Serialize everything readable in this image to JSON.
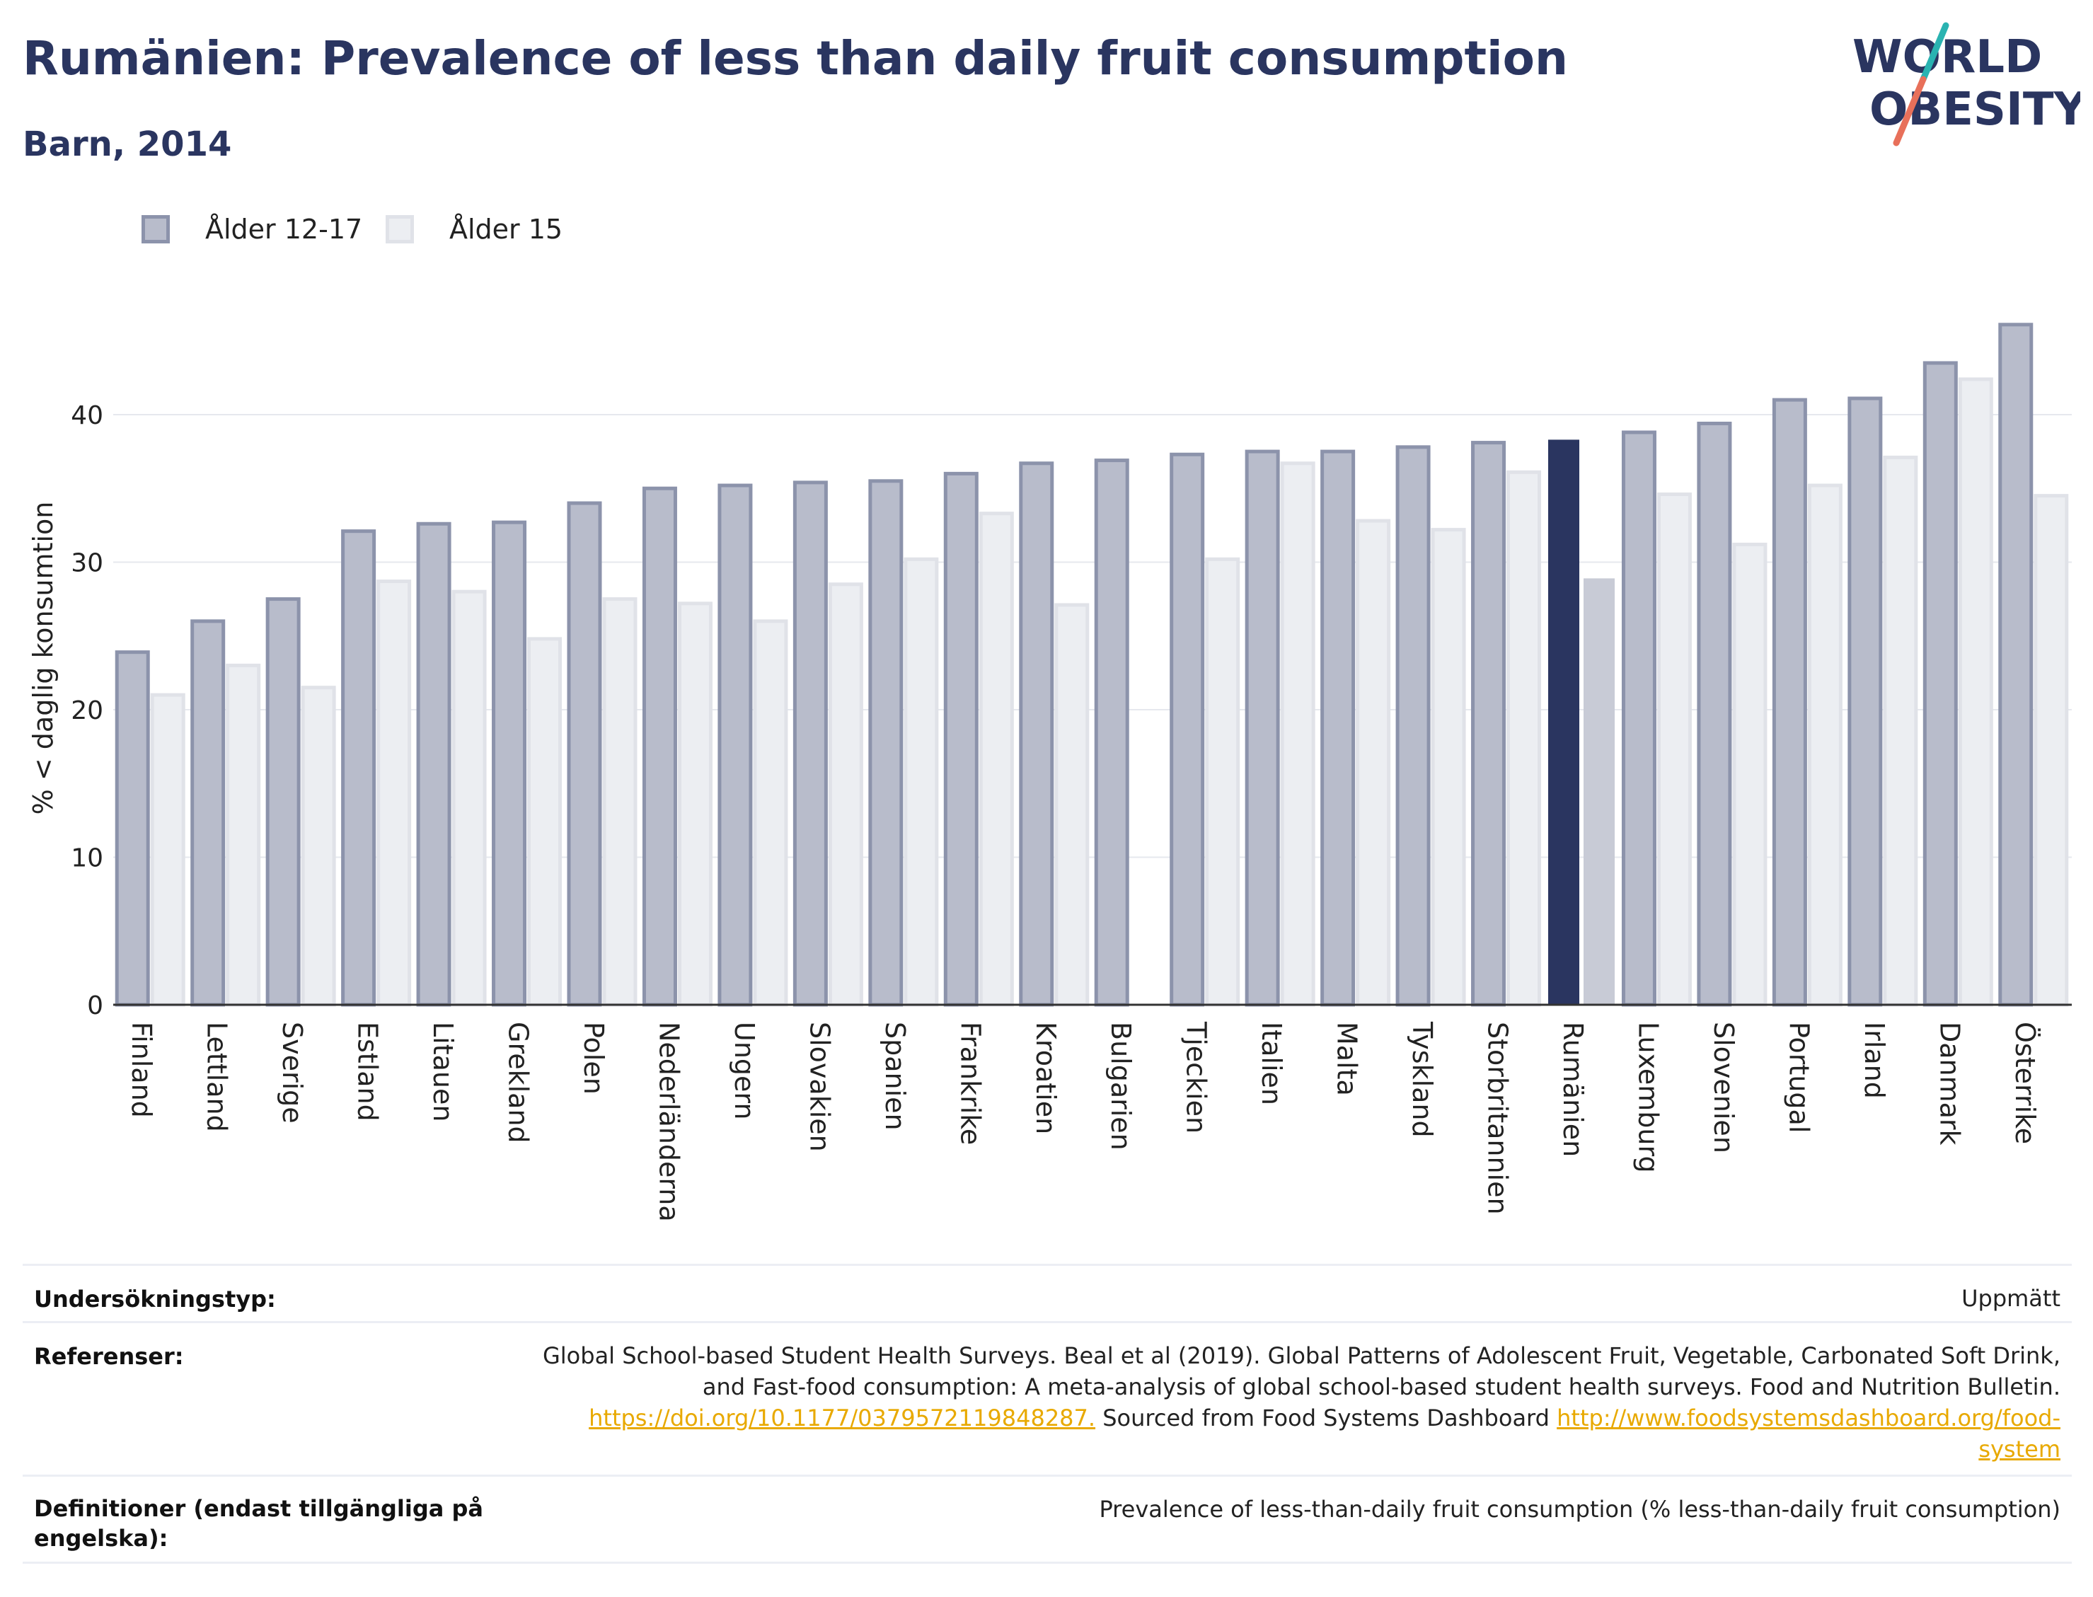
{
  "header": {
    "title": "Rumänien: Prevalence of less than daily fruit consumption",
    "subtitle": "Barn, 2014"
  },
  "logo": {
    "line1": "WORLD",
    "line2": "OBESITY",
    "accent_colors": [
      "#2ab3b1",
      "#e8705a"
    ]
  },
  "legend": [
    {
      "label": "Ålder 12-17",
      "color": "#b8bccb",
      "border": "#8c93ab"
    },
    {
      "label": "Ålder 15",
      "color": "#eceef2",
      "border": "#e0e2e8"
    }
  ],
  "colors": {
    "highlight_primary": "#2a3560",
    "highlight_secondary": "#c8cbd6",
    "title": "#2a3560",
    "link": "#e8a900"
  },
  "chart_data": {
    "type": "bar",
    "ylabel": "% < daglig konsumtion",
    "ylim": [
      0,
      47
    ],
    "yticks": [
      0,
      10,
      20,
      30,
      40
    ],
    "grid": true,
    "legend_position": "top-left",
    "highlight_category": "Rumänien",
    "categories": [
      "Finland",
      "Lettland",
      "Sverige",
      "Estland",
      "Litauen",
      "Grekland",
      "Polen",
      "Nederländerna",
      "Ungern",
      "Slovakien",
      "Spanien",
      "Frankrike",
      "Kroatien",
      "Bulgarien",
      "Tjeckien",
      "Italien",
      "Malta",
      "Tyskland",
      "Storbritannien",
      "Rumänien",
      "Luxemburg",
      "Slovenien",
      "Portugal",
      "Irland",
      "Danmark",
      "Österrike"
    ],
    "series": [
      {
        "name": "Ålder 12-17",
        "values": [
          23.9,
          26.0,
          27.5,
          32.1,
          32.6,
          32.7,
          34.0,
          35.0,
          35.2,
          35.4,
          35.5,
          36.0,
          36.7,
          36.9,
          37.3,
          37.5,
          37.5,
          37.8,
          38.1,
          38.3,
          38.8,
          39.4,
          41.0,
          41.1,
          43.5,
          46.1
        ]
      },
      {
        "name": "Ålder 15",
        "values": [
          21.0,
          23.0,
          21.5,
          28.7,
          28.0,
          24.8,
          27.5,
          27.2,
          26.0,
          28.5,
          30.2,
          33.3,
          27.1,
          null,
          30.2,
          36.7,
          32.8,
          32.2,
          36.1,
          28.9,
          34.6,
          31.2,
          35.2,
          37.1,
          42.4,
          34.5
        ]
      }
    ]
  },
  "footer": {
    "survey_type_label": "Undersökningstyp:",
    "survey_type_value": "Uppmätt",
    "references_label": "Referenser:",
    "references_line1": "Global School-based Student Health Surveys. Beal et al (2019). Global Patterns of Adolescent Fruit, Vegetable, Carbonated Soft Drink,",
    "references_line2": "and Fast-food consumption: A meta-analysis of global school-based student health surveys. Food and Nutrition Bulletin.",
    "references_link1": "https://doi.org/10.1177/0379572119848287.",
    "references_mid": " Sourced from Food Systems Dashboard ",
    "references_link2a": "http://www.foodsystemsdashboard.org/food-",
    "references_link2b": "system",
    "definitions_label_1": "Definitioner (endast tillgängliga på",
    "definitions_label_2": "engelska):",
    "definitions_value": "Prevalence of less-than-daily fruit consumption (% less-than-daily fruit consumption)"
  }
}
